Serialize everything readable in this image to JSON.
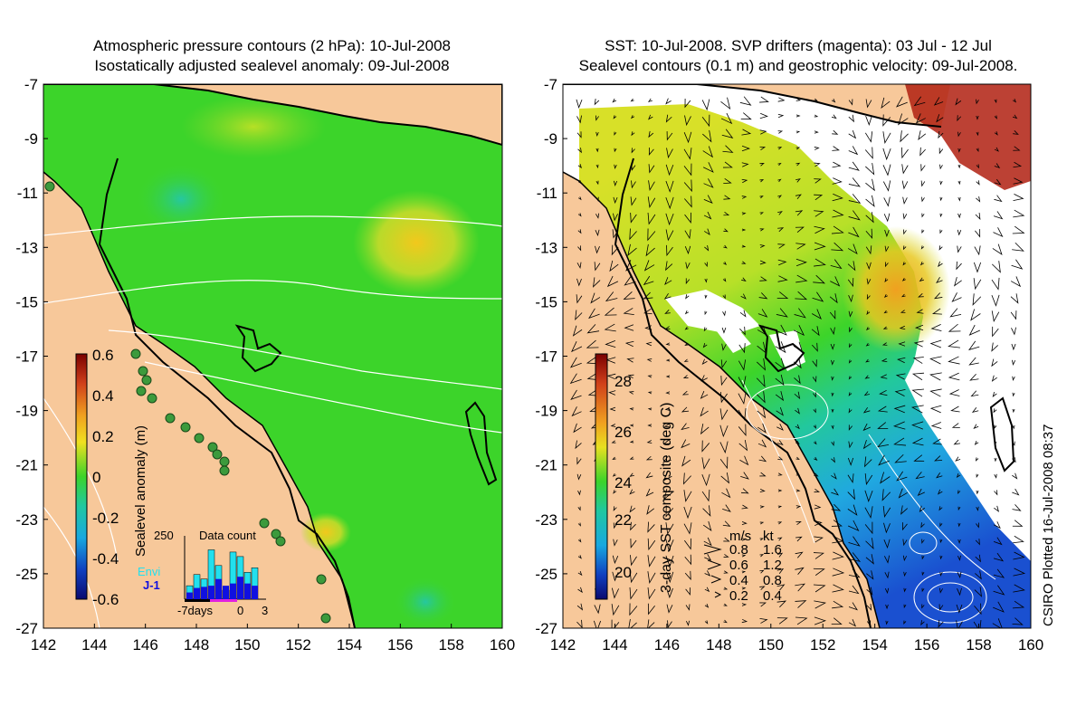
{
  "left_panel": {
    "title_line1": "Atmospheric pressure contours (2 hPa): 10-Jul-2008",
    "title_line2": "Isostatically adjusted sealevel anomaly: 09-Jul-2008",
    "colorbar": {
      "label": "Sealevel anomaly (m)",
      "ticks": [
        "0.6",
        "0.4",
        "0.2",
        "0",
        "-0.2",
        "-0.4",
        "-0.6"
      ],
      "range": [
        -0.6,
        0.6
      ]
    },
    "inset": {
      "title": "Data count",
      "ymax_label": "250",
      "x_labels": [
        "-7days",
        "0",
        "3"
      ],
      "legend": [
        {
          "label": "Envi",
          "color": "#22e0ee"
        },
        {
          "label": "J-1",
          "color": "#1010e0"
        }
      ],
      "envi_counts": [
        60,
        110,
        90,
        220,
        150,
        40,
        210,
        190,
        120,
        140
      ],
      "j1_counts": [
        30,
        50,
        55,
        60,
        90,
        60,
        70,
        100,
        70,
        60
      ]
    }
  },
  "right_panel": {
    "title_line1": "SST: 10-Jul-2008. SVP drifters (magenta): 03 Jul - 12 Jul",
    "title_line2": "Sealevel contours (0.1 m) and geostrophic velocity: 09-Jul-2008.",
    "colorbar": {
      "label": "3-day SST composite (deg C)",
      "ticks": [
        "28",
        "26",
        "24",
        "22",
        "20"
      ],
      "range": [
        19,
        29.5
      ]
    },
    "velocity_legend": {
      "header_ms": "m/s",
      "header_kt": "kt",
      "rows": [
        {
          "ms": "0.8",
          "kt": "1.6"
        },
        {
          "ms": "0.6",
          "kt": "1.2"
        },
        {
          "ms": "0.4",
          "kt": "0.8"
        },
        {
          "ms": "0.2",
          "kt": "0.4"
        }
      ]
    },
    "credit": "CSIRO Plotted 16-Jul-2008 08:37"
  },
  "axes": {
    "lon_ticks": [
      "142",
      "144",
      "146",
      "148",
      "150",
      "152",
      "154",
      "156",
      "158",
      "160"
    ],
    "lat_ticks": [
      "-7",
      "-9",
      "-11",
      "-13",
      "-15",
      "-17",
      "-19",
      "-21",
      "-23",
      "-25",
      "-27"
    ]
  },
  "colors": {
    "land": "#f7c89a",
    "sla_field": "#3cd42a",
    "coastline": "#000000",
    "contour": "#ffffff"
  }
}
